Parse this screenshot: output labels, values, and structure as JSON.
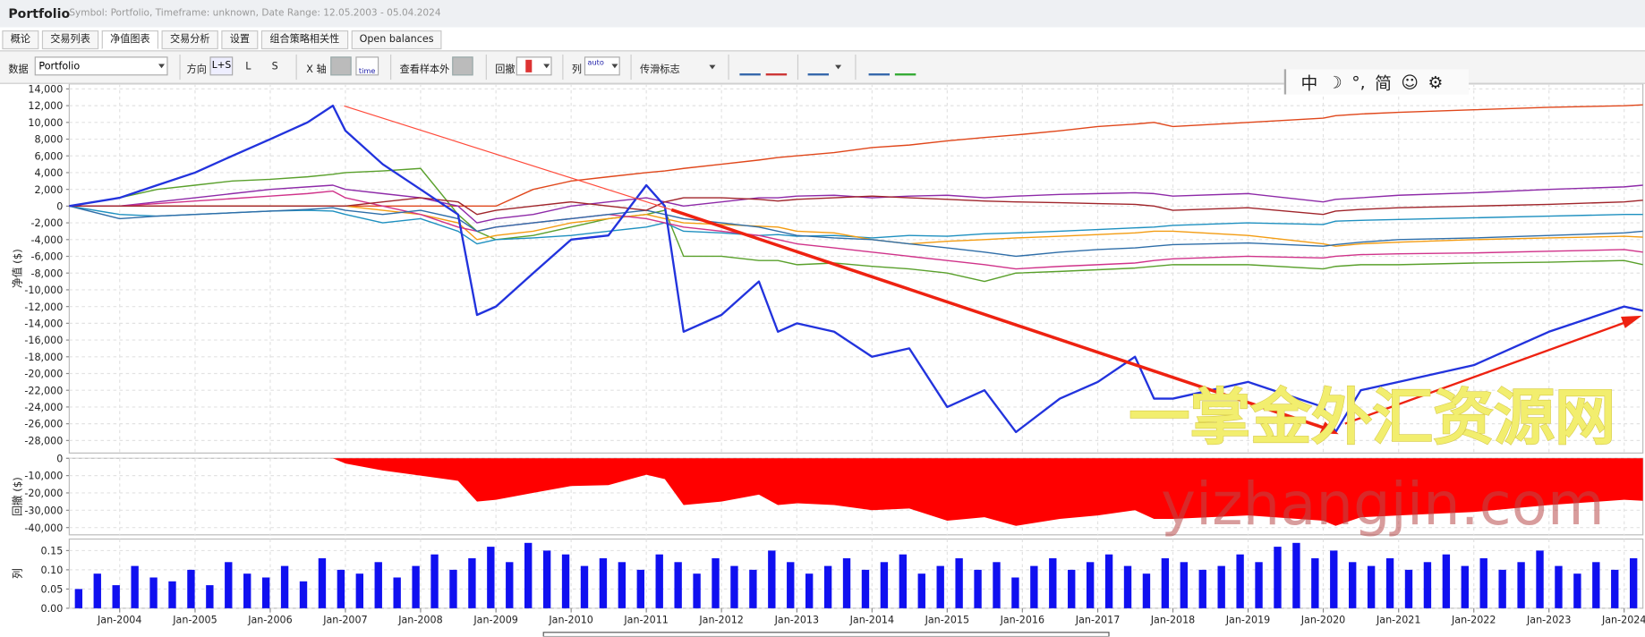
{
  "header": {
    "title": "Portfolio",
    "subtitle": "Symbol: Portfolio, Timeframe: unknown, Date Range: 12.05.2003 - 05.04.2024"
  },
  "tabs": [
    "概论",
    "交易列表",
    "净值图表",
    "交易分析",
    "设置",
    "组合策略相关性",
    "Open balances"
  ],
  "toolbar": {
    "data_label": "数据",
    "data_value": "Portfolio",
    "direction_label": "方向",
    "direction_options": [
      "L+S",
      "L",
      "S"
    ],
    "xaxis_label": "X 轴",
    "time_label": "time",
    "oos_label": "查看样本外",
    "drawdown_label": "回撤",
    "columns_label": "列",
    "auto_label": "auto",
    "slippage_label": "传滑标志"
  },
  "ime": [
    "中",
    "☽",
    "°,",
    "简",
    "☺",
    "⚙"
  ],
  "watermark": [
    "一掌金外汇资源网",
    "yizhangjin.com"
  ],
  "chart_data": [
    {
      "type": "line",
      "y_label": "净值 ($)",
      "grid": true,
      "xlim": [
        "May-2003",
        "Apr-2024"
      ],
      "ylim": [
        -29500,
        14600
      ],
      "yticks": [
        {
          "value": 14000,
          "label": "14,000"
        },
        {
          "value": 12000,
          "label": "12,000"
        },
        {
          "value": 10000,
          "label": "10,000"
        },
        {
          "value": 8000,
          "label": "8,000"
        },
        {
          "value": 6000,
          "label": "6,000"
        },
        {
          "value": 4000,
          "label": "4,000"
        },
        {
          "value": 2000,
          "label": "2,000"
        },
        0,
        {
          "value": -2000,
          "label": "-2,000"
        },
        {
          "value": -4000,
          "label": "-4,000"
        },
        {
          "value": -6000,
          "label": "-6,000"
        },
        {
          "value": -8000,
          "label": "-8,000"
        },
        {
          "value": -10000,
          "label": "-10,000"
        },
        {
          "value": -12000,
          "label": "-12,000"
        },
        {
          "value": -14000,
          "label": "-14,000"
        },
        {
          "value": -16000,
          "label": "-16,000"
        },
        {
          "value": -18000,
          "label": "-18,000"
        },
        {
          "value": -20000,
          "label": "-20,000"
        },
        {
          "value": -22000,
          "label": "-22,000"
        },
        {
          "value": -24000,
          "label": "-24,000"
        },
        {
          "value": -26000,
          "label": "-26,000"
        },
        {
          "value": -28000,
          "label": "-28,000"
        }
      ],
      "x": [
        "May-2003",
        "Jan-2004",
        "Jul-2004",
        "Jan-2005",
        "Jul-2005",
        "Jan-2006",
        "Jul-2006",
        "Nov-2006",
        "Jan-2007",
        "Jul-2007",
        "Jan-2008",
        "Jul-2008",
        "Oct-2008",
        "Jan-2009",
        "Jul-2009",
        "Jan-2010",
        "Jul-2010",
        "Jan-2011",
        "Apr-2011",
        "Jul-2011",
        "Jan-2012",
        "Jul-2012",
        "Oct-2012",
        "Jan-2013",
        "Jul-2013",
        "Jan-2014",
        "Jul-2014",
        "Jan-2015",
        "Jul-2015",
        "Dec-2015",
        "Jul-2016",
        "Jan-2017",
        "Jul-2017",
        "Oct-2017",
        "Jan-2018",
        "Jan-2019",
        "Jan-2020",
        "Mar-2020",
        "Jul-2020",
        "Jan-2021",
        "Jan-2022",
        "Jan-2023",
        "Jan-2024",
        "Apr-2024"
      ],
      "series": [
        {
          "color": "#e0471b",
          "values": [
            0,
            0,
            0,
            0,
            0,
            0,
            0,
            0,
            0,
            0,
            0,
            0,
            0,
            0,
            2000,
            3000,
            3500,
            4000,
            4200,
            4500,
            5000,
            5500,
            5800,
            6000,
            6400,
            7000,
            7300,
            7800,
            8200,
            8500,
            9000,
            9500,
            9800,
            10000,
            9500,
            10000,
            10500,
            10800,
            11000,
            11200,
            11500,
            11800,
            12000,
            12100
          ]
        },
        {
          "color": "#5aa02c",
          "values": [
            null,
            1000,
            2000,
            2500,
            3000,
            3200,
            3500,
            3800,
            4000,
            4200,
            4500,
            -1000,
            -3000,
            -4000,
            -3500,
            -2500,
            -1500,
            -1000,
            -500,
            -6000,
            -6000,
            -6500,
            -6500,
            -7000,
            -6800,
            -7200,
            -7500,
            -8000,
            -9000,
            -8000,
            -7800,
            -7600,
            -7400,
            -7200,
            -7000,
            -7000,
            -7500,
            -7200,
            -7000,
            -7000,
            -6800,
            -6700,
            -6500,
            -7000
          ]
        },
        {
          "color": "#8e2aa8",
          "values": [
            0,
            0,
            500,
            1000,
            1500,
            2000,
            2300,
            2500,
            2000,
            1500,
            1000,
            0,
            -2000,
            -1500,
            -1000,
            0,
            500,
            1000,
            500,
            0,
            500,
            1000,
            1000,
            1200,
            1300,
            1000,
            1200,
            1300,
            1000,
            1200,
            1400,
            1500,
            1600,
            1500,
            1200,
            1500,
            500,
            800,
            1000,
            1300,
            1600,
            2000,
            2300,
            2500
          ]
        },
        {
          "color": "#1e90c0",
          "values": [
            0,
            -1000,
            -1200,
            -1000,
            -800,
            -600,
            -500,
            -600,
            -1000,
            -2000,
            -1500,
            -3000,
            -4500,
            -4000,
            -3800,
            -3500,
            -3000,
            -2500,
            -2000,
            -3000,
            -3200,
            -3500,
            -3400,
            -3600,
            -3500,
            -3800,
            -3500,
            -3600,
            -3300,
            -3200,
            -3000,
            -2800,
            -2600,
            -2500,
            -2300,
            -2000,
            -2200,
            -1800,
            -1700,
            -1600,
            -1400,
            -1200,
            -1000,
            -1000
          ]
        },
        {
          "color": "#f39c12",
          "values": [
            null,
            0,
            0,
            0,
            0,
            0,
            0,
            0,
            0,
            -500,
            -1000,
            -2000,
            -4000,
            -3500,
            -3000,
            -2000,
            -1500,
            -1000,
            -1500,
            -2000,
            -2200,
            -2400,
            -2500,
            -3000,
            -3200,
            -4000,
            -4500,
            -4200,
            -4000,
            -3800,
            -3600,
            -3400,
            -3200,
            -3000,
            -3000,
            -3500,
            -4500,
            -4800,
            -4500,
            -4300,
            -4000,
            -3800,
            -3600,
            -3700
          ]
        },
        {
          "color": "#d0338a",
          "values": [
            0,
            0,
            300,
            600,
            900,
            1200,
            1500,
            1800,
            1000,
            0,
            -1000,
            -2500,
            -3000,
            -2500,
            -2000,
            -1500,
            -1000,
            -1500,
            -2000,
            -2500,
            -3000,
            -3500,
            -4000,
            -4500,
            -5000,
            -5500,
            -6000,
            -6500,
            -7000,
            -7500,
            -7200,
            -7000,
            -6800,
            -6500,
            -6300,
            -6000,
            -6200,
            -6000,
            -5800,
            -5700,
            -5600,
            -5400,
            -5200,
            -5500
          ]
        },
        {
          "color": "#2f6ea8",
          "values": [
            0,
            -1500,
            -1200,
            -1000,
            -800,
            -600,
            -400,
            -200,
            -500,
            -1000,
            -500,
            -1500,
            -3000,
            -2500,
            -2000,
            -1500,
            -1000,
            -500,
            -1000,
            -1500,
            -2000,
            -2500,
            -3000,
            -3500,
            -3800,
            -4000,
            -4500,
            -5000,
            -5500,
            -6000,
            -5500,
            -5200,
            -5000,
            -4800,
            -4600,
            -4400,
            -4800,
            -4600,
            -4300,
            -4000,
            -3800,
            -3500,
            -3200,
            -3000
          ]
        },
        {
          "color": "#a0252b",
          "values": [
            0,
            0,
            0,
            0,
            0,
            0,
            0,
            0,
            0,
            500,
            1000,
            500,
            -1000,
            -500,
            0,
            500,
            0,
            -500,
            500,
            1000,
            1000,
            800,
            600,
            800,
            1000,
            1200,
            1000,
            800,
            600,
            500,
            400,
            300,
            200,
            0,
            -500,
            -200,
            -1000,
            -600,
            -400,
            -200,
            0,
            200,
            500,
            700
          ]
        },
        {
          "color": "#2233dd",
          "width": 2,
          "values": [
            0,
            1000,
            2500,
            4000,
            6000,
            8000,
            10000,
            12000,
            9000,
            5000,
            2000,
            -1000,
            -13000,
            -12000,
            -8000,
            -4000,
            -3500,
            2500,
            0,
            -15000,
            -13000,
            -9000,
            -15000,
            -14000,
            -15000,
            -18000,
            -17000,
            -24000,
            -22000,
            -27000,
            -23000,
            -21000,
            -18000,
            -23000,
            -23000,
            -21000,
            -24000,
            -27000,
            -22000,
            -21000,
            -19000,
            -15000,
            -12000,
            -12500
          ]
        }
      ]
    },
    {
      "type": "area",
      "y_label": "回撤 ($)",
      "color": "#ff0000",
      "grid": true,
      "ylim": [
        -44200,
        0
      ],
      "yticks": [
        0,
        {
          "value": -10000,
          "label": "-10,000"
        },
        {
          "value": -20000,
          "label": "-20,000"
        },
        {
          "value": -30000,
          "label": "-30,000"
        },
        {
          "value": -40000,
          "label": "-40,000"
        }
      ],
      "values": [
        0,
        0,
        0,
        0,
        0,
        0,
        0,
        0,
        -3000,
        -7000,
        -10000,
        -13000,
        -25000,
        -24000,
        -20000,
        -16000,
        -15500,
        -9500,
        -12000,
        -27000,
        -25000,
        -21000,
        -27000,
        -26000,
        -27000,
        -30000,
        -29000,
        -36000,
        -34000,
        -39000,
        -35000,
        -33000,
        -30000,
        -35000,
        -35000,
        -33000,
        -36000,
        -39000,
        -34000,
        -33000,
        -31000,
        -27000,
        -24000,
        -24500
      ]
    },
    {
      "type": "bar",
      "y_label": "列",
      "color": "#1010f0",
      "grid": true,
      "ylim": [
        0,
        0.18
      ],
      "yticks": [
        {
          "value": 0.15,
          "label": "0.15"
        },
        {
          "value": 0.1,
          "label": "0.10"
        },
        {
          "value": 0.05,
          "label": "0.05"
        },
        {
          "value": 0,
          "label": "0.00"
        }
      ],
      "xticks": [
        "Jan-2004",
        "Jan-2005",
        "Jan-2006",
        "Jan-2007",
        "Jan-2008",
        "Jan-2009",
        "Jan-2010",
        "Jan-2011",
        "Jan-2012",
        "Jan-2013",
        "Jan-2014",
        "Jan-2015",
        "Jan-2016",
        "Jan-2017",
        "Jan-2018",
        "Jan-2019",
        "Jan-2020",
        "Jan-2021",
        "Jan-2022",
        "Jan-2023",
        "Jan-2024"
      ],
      "values": [
        0.05,
        0.09,
        0.06,
        0.11,
        0.08,
        0.07,
        0.1,
        0.06,
        0.12,
        0.09,
        0.08,
        0.11,
        0.07,
        0.13,
        0.1,
        0.09,
        0.12,
        0.08,
        0.11,
        0.14,
        0.1,
        0.13,
        0.16,
        0.12,
        0.17,
        0.15,
        0.14,
        0.11,
        0.13,
        0.12,
        0.1,
        0.14,
        0.12,
        0.09,
        0.13,
        0.11,
        0.1,
        0.15,
        0.12,
        0.09,
        0.11,
        0.13,
        0.1,
        0.12,
        0.14,
        0.09,
        0.11,
        0.13,
        0.1,
        0.12,
        0.08,
        0.11,
        0.13,
        0.1,
        0.12,
        0.14,
        0.11,
        0.09,
        0.13,
        0.12,
        0.1,
        0.11,
        0.14,
        0.12,
        0.16,
        0.17,
        0.13,
        0.15,
        0.12,
        0.11,
        0.13,
        0.1,
        0.12,
        0.14,
        0.11,
        0.13,
        0.1,
        0.12,
        0.15,
        0.11,
        0.09,
        0.12,
        0.1,
        0.13
      ]
    }
  ]
}
